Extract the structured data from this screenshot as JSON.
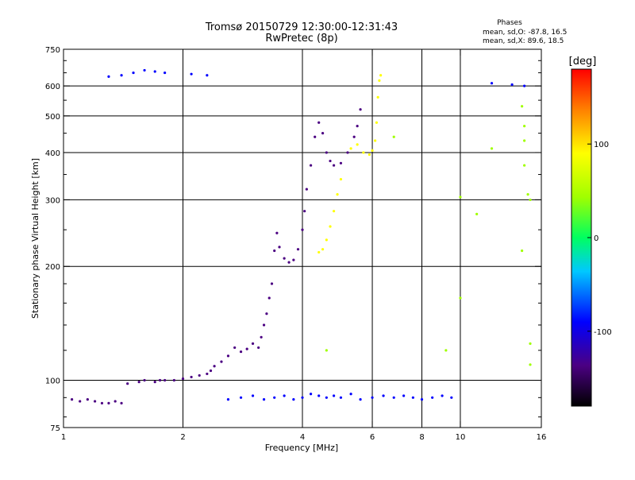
{
  "header": {
    "title_line1": "Tromsø 20150729 12:30:00-12:31:43",
    "title_line2": "RwPretec (8p)",
    "stats_title": "Phases",
    "stats_o": "mean, sd,O: -87.8, 16.5",
    "stats_x": "mean, sd,X:  89.6, 18.5"
  },
  "chart_data": {
    "type": "scatter",
    "xlabel": "Frequency [MHz]",
    "ylabel": "Stationary phase Virtual Height [km]",
    "xscale": "log",
    "yscale": "log",
    "xlim": [
      1,
      16
    ],
    "ylim": [
      75,
      750
    ],
    "xticks": [
      1,
      2,
      4,
      6,
      8,
      10,
      16
    ],
    "xtick_labels": [
      "1",
      "2",
      "4",
      "6",
      "8",
      "10",
      "16"
    ],
    "yticks": [
      75,
      100,
      200,
      300,
      400,
      500,
      600,
      750
    ],
    "ytick_labels": [
      "75",
      "100",
      "200",
      "300",
      "400",
      "500",
      "600",
      "750"
    ],
    "grid_major_x": [
      2,
      4,
      6,
      8,
      10
    ],
    "grid_major_y": [
      100,
      200,
      300,
      400,
      500,
      600
    ],
    "colorbar": {
      "label": "[deg]",
      "range": [
        -180,
        180
      ],
      "ticks": [
        100,
        0,
        -100
      ],
      "tick_labels": [
        "100",
        "0",
        "-100"
      ]
    },
    "series": [
      {
        "role": "O-mode echo trace (low band)",
        "points": [
          [
            1.05,
            89
          ],
          [
            1.1,
            88
          ],
          [
            1.15,
            89
          ],
          [
            1.2,
            88
          ],
          [
            1.25,
            87
          ],
          [
            1.3,
            87
          ],
          [
            1.35,
            88
          ],
          [
            1.4,
            87
          ],
          [
            1.45,
            98
          ],
          [
            1.55,
            99
          ],
          [
            1.6,
            100
          ],
          [
            1.7,
            99
          ],
          [
            1.75,
            100
          ],
          [
            1.8,
            100
          ],
          [
            1.9,
            100
          ],
          [
            2.0,
            101
          ],
          [
            2.1,
            102
          ],
          [
            2.2,
            103
          ],
          [
            2.3,
            104
          ],
          [
            2.35,
            106
          ],
          [
            2.4,
            109
          ],
          [
            2.5,
            112
          ],
          [
            2.6,
            116
          ],
          [
            2.7,
            122
          ],
          [
            2.8,
            119
          ],
          [
            2.9,
            121
          ],
          [
            3.0,
            125
          ],
          [
            3.1,
            122
          ],
          [
            3.15,
            130
          ],
          [
            3.2,
            140
          ],
          [
            3.25,
            150
          ],
          [
            3.3,
            165
          ],
          [
            3.35,
            180
          ],
          [
            3.4,
            220
          ],
          [
            3.45,
            245
          ],
          [
            3.5,
            225
          ],
          [
            3.6,
            210
          ],
          [
            3.7,
            205
          ],
          [
            3.8,
            208
          ],
          [
            3.9,
            222
          ],
          [
            4.0,
            250
          ],
          [
            4.05,
            280
          ],
          [
            4.1,
            320
          ],
          [
            4.2,
            370
          ],
          [
            4.3,
            440
          ],
          [
            4.4,
            480
          ],
          [
            4.5,
            450
          ],
          [
            4.6,
            400
          ],
          [
            4.7,
            380
          ],
          [
            4.8,
            370
          ],
          [
            5.0,
            375
          ],
          [
            5.2,
            400
          ],
          [
            5.4,
            440
          ],
          [
            5.5,
            470
          ],
          [
            5.6,
            520
          ]
        ],
        "phase_deg": -110
      },
      {
        "role": "X-mode echo trace (high band)",
        "points": [
          [
            4.4,
            218
          ],
          [
            4.5,
            222
          ],
          [
            4.6,
            235
          ],
          [
            4.7,
            255
          ],
          [
            4.8,
            280
          ],
          [
            4.9,
            310
          ],
          [
            5.0,
            340
          ],
          [
            5.3,
            410
          ],
          [
            5.5,
            420
          ],
          [
            5.7,
            400
          ],
          [
            5.9,
            395
          ],
          [
            6.0,
            405
          ],
          [
            6.1,
            430
          ],
          [
            6.15,
            480
          ],
          [
            6.2,
            560
          ],
          [
            6.25,
            620
          ],
          [
            6.3,
            640
          ]
        ],
        "phase_deg": 100
      },
      {
        "role": "Top-of-panel echoes",
        "points": [
          [
            1.3,
            635
          ],
          [
            1.4,
            640
          ],
          [
            1.5,
            650
          ],
          [
            1.6,
            660
          ],
          [
            1.7,
            655
          ],
          [
            1.8,
            650
          ],
          [
            2.1,
            645
          ],
          [
            2.3,
            640
          ],
          [
            12.0,
            610
          ],
          [
            13.5,
            605
          ],
          [
            14.5,
            600
          ]
        ],
        "phase_deg": -70
      },
      {
        "role": "E-region band clutter",
        "points": [
          [
            2.6,
            89
          ],
          [
            2.8,
            90
          ],
          [
            3.0,
            91
          ],
          [
            3.2,
            89
          ],
          [
            3.4,
            90
          ],
          [
            3.6,
            91
          ],
          [
            3.8,
            89
          ],
          [
            4.0,
            90
          ],
          [
            4.2,
            92
          ],
          [
            4.4,
            91
          ],
          [
            4.6,
            90
          ],
          [
            4.8,
            91
          ],
          [
            5.0,
            90
          ],
          [
            5.3,
            92
          ],
          [
            5.6,
            89
          ],
          [
            6.0,
            90
          ],
          [
            6.4,
            91
          ],
          [
            6.8,
            90
          ],
          [
            7.2,
            91
          ],
          [
            7.6,
            90
          ],
          [
            8.0,
            89
          ],
          [
            8.5,
            90
          ],
          [
            9.0,
            91
          ],
          [
            9.5,
            90
          ]
        ],
        "phase_deg": -60
      },
      {
        "role": "Scattered isolated echoes",
        "points": [
          [
            9.2,
            120
          ],
          [
            10.0,
            165
          ],
          [
            10.0,
            305
          ],
          [
            12.0,
            410
          ],
          [
            14.3,
            530
          ],
          [
            14.5,
            470
          ],
          [
            14.5,
            430
          ],
          [
            14.5,
            370
          ],
          [
            14.8,
            310
          ],
          [
            15.0,
            300
          ],
          [
            14.3,
            220
          ],
          [
            15.0,
            125
          ],
          [
            15.0,
            110
          ],
          [
            11.0,
            275
          ],
          [
            6.8,
            440
          ],
          [
            4.6,
            120
          ]
        ],
        "phase_deg": 60
      }
    ]
  }
}
